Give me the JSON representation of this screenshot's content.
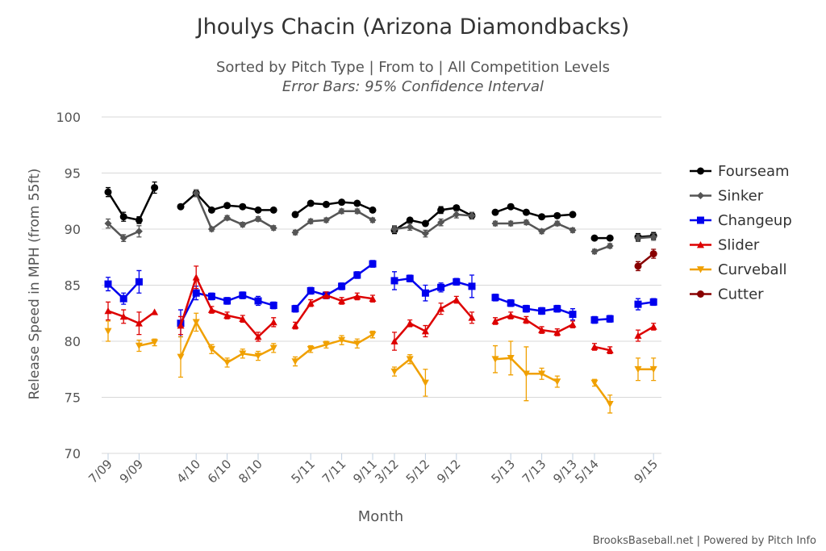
{
  "chart_data": {
    "type": "line",
    "title": "Jhoulys Chacin (Arizona Diamondbacks)",
    "subtitle": "Sorted by Pitch Type | From to | All Competition Levels",
    "subtitle2": "Error Bars: 95% Confidence Interval",
    "xlabel": "Month",
    "ylabel": "Release Speed in MPH (from 55ft)",
    "ylim": [
      70,
      100
    ],
    "yticks": [
      70,
      75,
      80,
      85,
      90,
      95,
      100
    ],
    "grid": true,
    "legend_position": "right",
    "credit": "BrooksBaseball.net | Powered by Pitch Info",
    "x_tick_labels": [
      "7/09",
      "9/09",
      "4/10",
      "6/10",
      "8/10",
      "5/11",
      "7/11",
      "9/11",
      "3/12",
      "5/12",
      "9/12",
      "5/13",
      "7/13",
      "9/13",
      "5/14",
      "9/15"
    ],
    "series": [
      {
        "name": "Fourseam",
        "color": "#000000",
        "marker": "circle",
        "segments": [
          [
            93.3,
            91.1,
            90.8,
            93.7
          ],
          [
            92.0,
            93.2,
            91.7,
            92.1,
            92.0,
            91.7,
            91.7
          ],
          [
            91.3,
            92.3,
            92.2,
            92.4,
            92.3,
            91.7
          ],
          [
            89.9,
            90.8,
            90.5,
            91.7,
            91.9,
            91.2
          ],
          [
            91.5,
            92.0,
            91.5,
            91.1,
            91.2,
            91.3
          ],
          [
            89.2,
            89.2
          ],
          [
            89.3,
            89.4
          ]
        ],
        "errors": [
          [
            0.4,
            0.4,
            0.3,
            0.5
          ],
          [
            0.2,
            0.3,
            0.2,
            0.2,
            0.2,
            0.2,
            0.2
          ],
          [
            0.2,
            0.2,
            0.2,
            0.2,
            0.2,
            0.2
          ],
          [
            0.3,
            0.2,
            0.2,
            0.3,
            0.2,
            0.3
          ],
          [
            0.2,
            0.2,
            0.2,
            0.2,
            0.2,
            0.2
          ],
          [
            0.2,
            0.2
          ],
          [
            0.3,
            0.3
          ]
        ]
      },
      {
        "name": "Sinker",
        "color": "#555555",
        "marker": "diamond",
        "segments": [
          [
            90.5,
            89.2,
            89.8,
            null
          ],
          [
            null,
            93.2,
            90.0,
            91.0,
            90.4,
            90.9,
            90.1
          ],
          [
            89.7,
            90.7,
            90.8,
            91.6,
            91.6,
            90.8
          ],
          [
            90.0,
            90.2,
            89.6,
            90.6,
            91.3,
            91.2
          ],
          [
            90.5,
            90.5,
            90.6,
            89.8,
            90.5,
            89.9
          ],
          [
            88.0,
            88.5
          ],
          [
            89.2,
            89.3
          ]
        ],
        "errors": [
          [
            0.4,
            0.3,
            0.5,
            0
          ],
          [
            0,
            0.3,
            0.2,
            0.2,
            0.2,
            0.2,
            0.2
          ],
          [
            0.2,
            0.2,
            0.2,
            0.2,
            0.2,
            0.2
          ],
          [
            0.3,
            0.3,
            0.3,
            0.3,
            0.3,
            0.3
          ],
          [
            0.2,
            0.2,
            0.2,
            0.2,
            0.2,
            0.2
          ],
          [
            0.2,
            0.2
          ],
          [
            0.3,
            0.3
          ]
        ]
      },
      {
        "name": "Changeup",
        "color": "#0000ee",
        "marker": "square",
        "segments": [
          [
            85.1,
            83.8,
            85.3,
            null
          ],
          [
            81.6,
            84.3,
            84.0,
            83.6,
            84.1,
            83.6,
            83.2
          ],
          [
            82.9,
            84.5,
            84.1,
            84.9,
            85.9,
            86.9
          ],
          [
            85.4,
            85.6,
            84.3,
            84.8,
            85.3,
            84.9
          ],
          [
            83.9,
            83.4,
            82.9,
            82.7,
            82.9,
            82.4
          ],
          [
            81.9,
            82.0
          ],
          [
            83.3,
            83.5
          ]
        ],
        "errors": [
          [
            0.6,
            0.5,
            1.0,
            0
          ],
          [
            1.2,
            0.6,
            0.3,
            0.3,
            0.3,
            0.4,
            0.3
          ],
          [
            0.3,
            0.3,
            0.3,
            0.3,
            0.3,
            0.3
          ],
          [
            0.8,
            0.3,
            0.7,
            0.4,
            0.3,
            1.0
          ],
          [
            0.3,
            0.3,
            0.3,
            0.3,
            0.3,
            0.5
          ],
          [
            0.3,
            0.3
          ],
          [
            0.5,
            0.3
          ]
        ]
      },
      {
        "name": "Slider",
        "color": "#dd0000",
        "marker": "triangle",
        "segments": [
          [
            82.7,
            82.2,
            81.6,
            82.6
          ],
          [
            81.4,
            85.7,
            82.8,
            82.3,
            82.0,
            80.4,
            81.7
          ],
          [
            81.4,
            83.4,
            84.1,
            83.6,
            84.0,
            83.8
          ],
          [
            80.0,
            81.6,
            80.9,
            82.9,
            83.7,
            82.1
          ],
          [
            81.8,
            82.3,
            81.9,
            81.0,
            80.8,
            81.5
          ],
          [
            79.5,
            79.2
          ],
          [
            80.5,
            81.3
          ]
        ],
        "errors": [
          [
            0.8,
            0.6,
            1.0,
            0
          ],
          [
            0.8,
            1.0,
            0.3,
            0.3,
            0.3,
            0.4,
            0.4
          ],
          [
            0.3,
            0.3,
            0.3,
            0.3,
            0.3,
            0.3
          ],
          [
            0.8,
            0.3,
            0.5,
            0.5,
            0.3,
            0.5
          ],
          [
            0.3,
            0.3,
            0.3,
            0.3,
            0.3,
            0.3
          ],
          [
            0.3,
            0.3
          ],
          [
            0.5,
            0.3
          ]
        ]
      },
      {
        "name": "Curveball",
        "color": "#f0a000",
        "marker": "triangle-down",
        "segments": [
          [
            80.9,
            null,
            79.6,
            79.9
          ],
          [
            78.6,
            81.7,
            79.3,
            78.1,
            78.9,
            78.7,
            79.4
          ],
          [
            78.2,
            79.3,
            79.7,
            80.1,
            79.8,
            80.6
          ],
          [
            77.3,
            78.4,
            76.3,
            null,
            null,
            null
          ],
          [
            78.4,
            78.5,
            77.1,
            77.1,
            76.4,
            null
          ],
          [
            76.3,
            74.4
          ],
          [
            77.5,
            77.5
          ]
        ],
        "errors": [
          [
            0.9,
            0,
            0.5,
            0.3
          ],
          [
            1.8,
            0.8,
            0.4,
            0.4,
            0.4,
            0.4,
            0.4
          ],
          [
            0.4,
            0.3,
            0.3,
            0.4,
            0.4,
            0.3
          ],
          [
            0.4,
            0.4,
            1.2,
            0,
            0,
            0
          ],
          [
            1.2,
            1.5,
            2.4,
            0.5,
            0.5,
            0
          ],
          [
            0.3,
            0.8
          ],
          [
            1.0,
            1.0
          ]
        ]
      },
      {
        "name": "Cutter",
        "color": "#880000",
        "marker": "circle",
        "segments": [
          [
            null,
            null,
            null,
            null
          ],
          [
            null,
            null,
            null,
            null,
            null,
            null,
            null
          ],
          [
            null,
            null,
            null,
            null,
            null,
            null
          ],
          [
            null,
            null,
            null,
            null,
            null,
            null
          ],
          [
            null,
            null,
            null,
            null,
            null,
            null
          ],
          [
            null,
            null
          ],
          [
            86.7,
            87.8
          ]
        ],
        "errors": [
          [
            0,
            0,
            0,
            0
          ],
          [
            0,
            0,
            0,
            0,
            0,
            0,
            0
          ],
          [
            0,
            0,
            0,
            0,
            0,
            0
          ],
          [
            0,
            0,
            0,
            0,
            0,
            0
          ],
          [
            0,
            0,
            0,
            0,
            0,
            0
          ],
          [
            0,
            0
          ],
          [
            0.4,
            0.4
          ]
        ]
      }
    ]
  }
}
